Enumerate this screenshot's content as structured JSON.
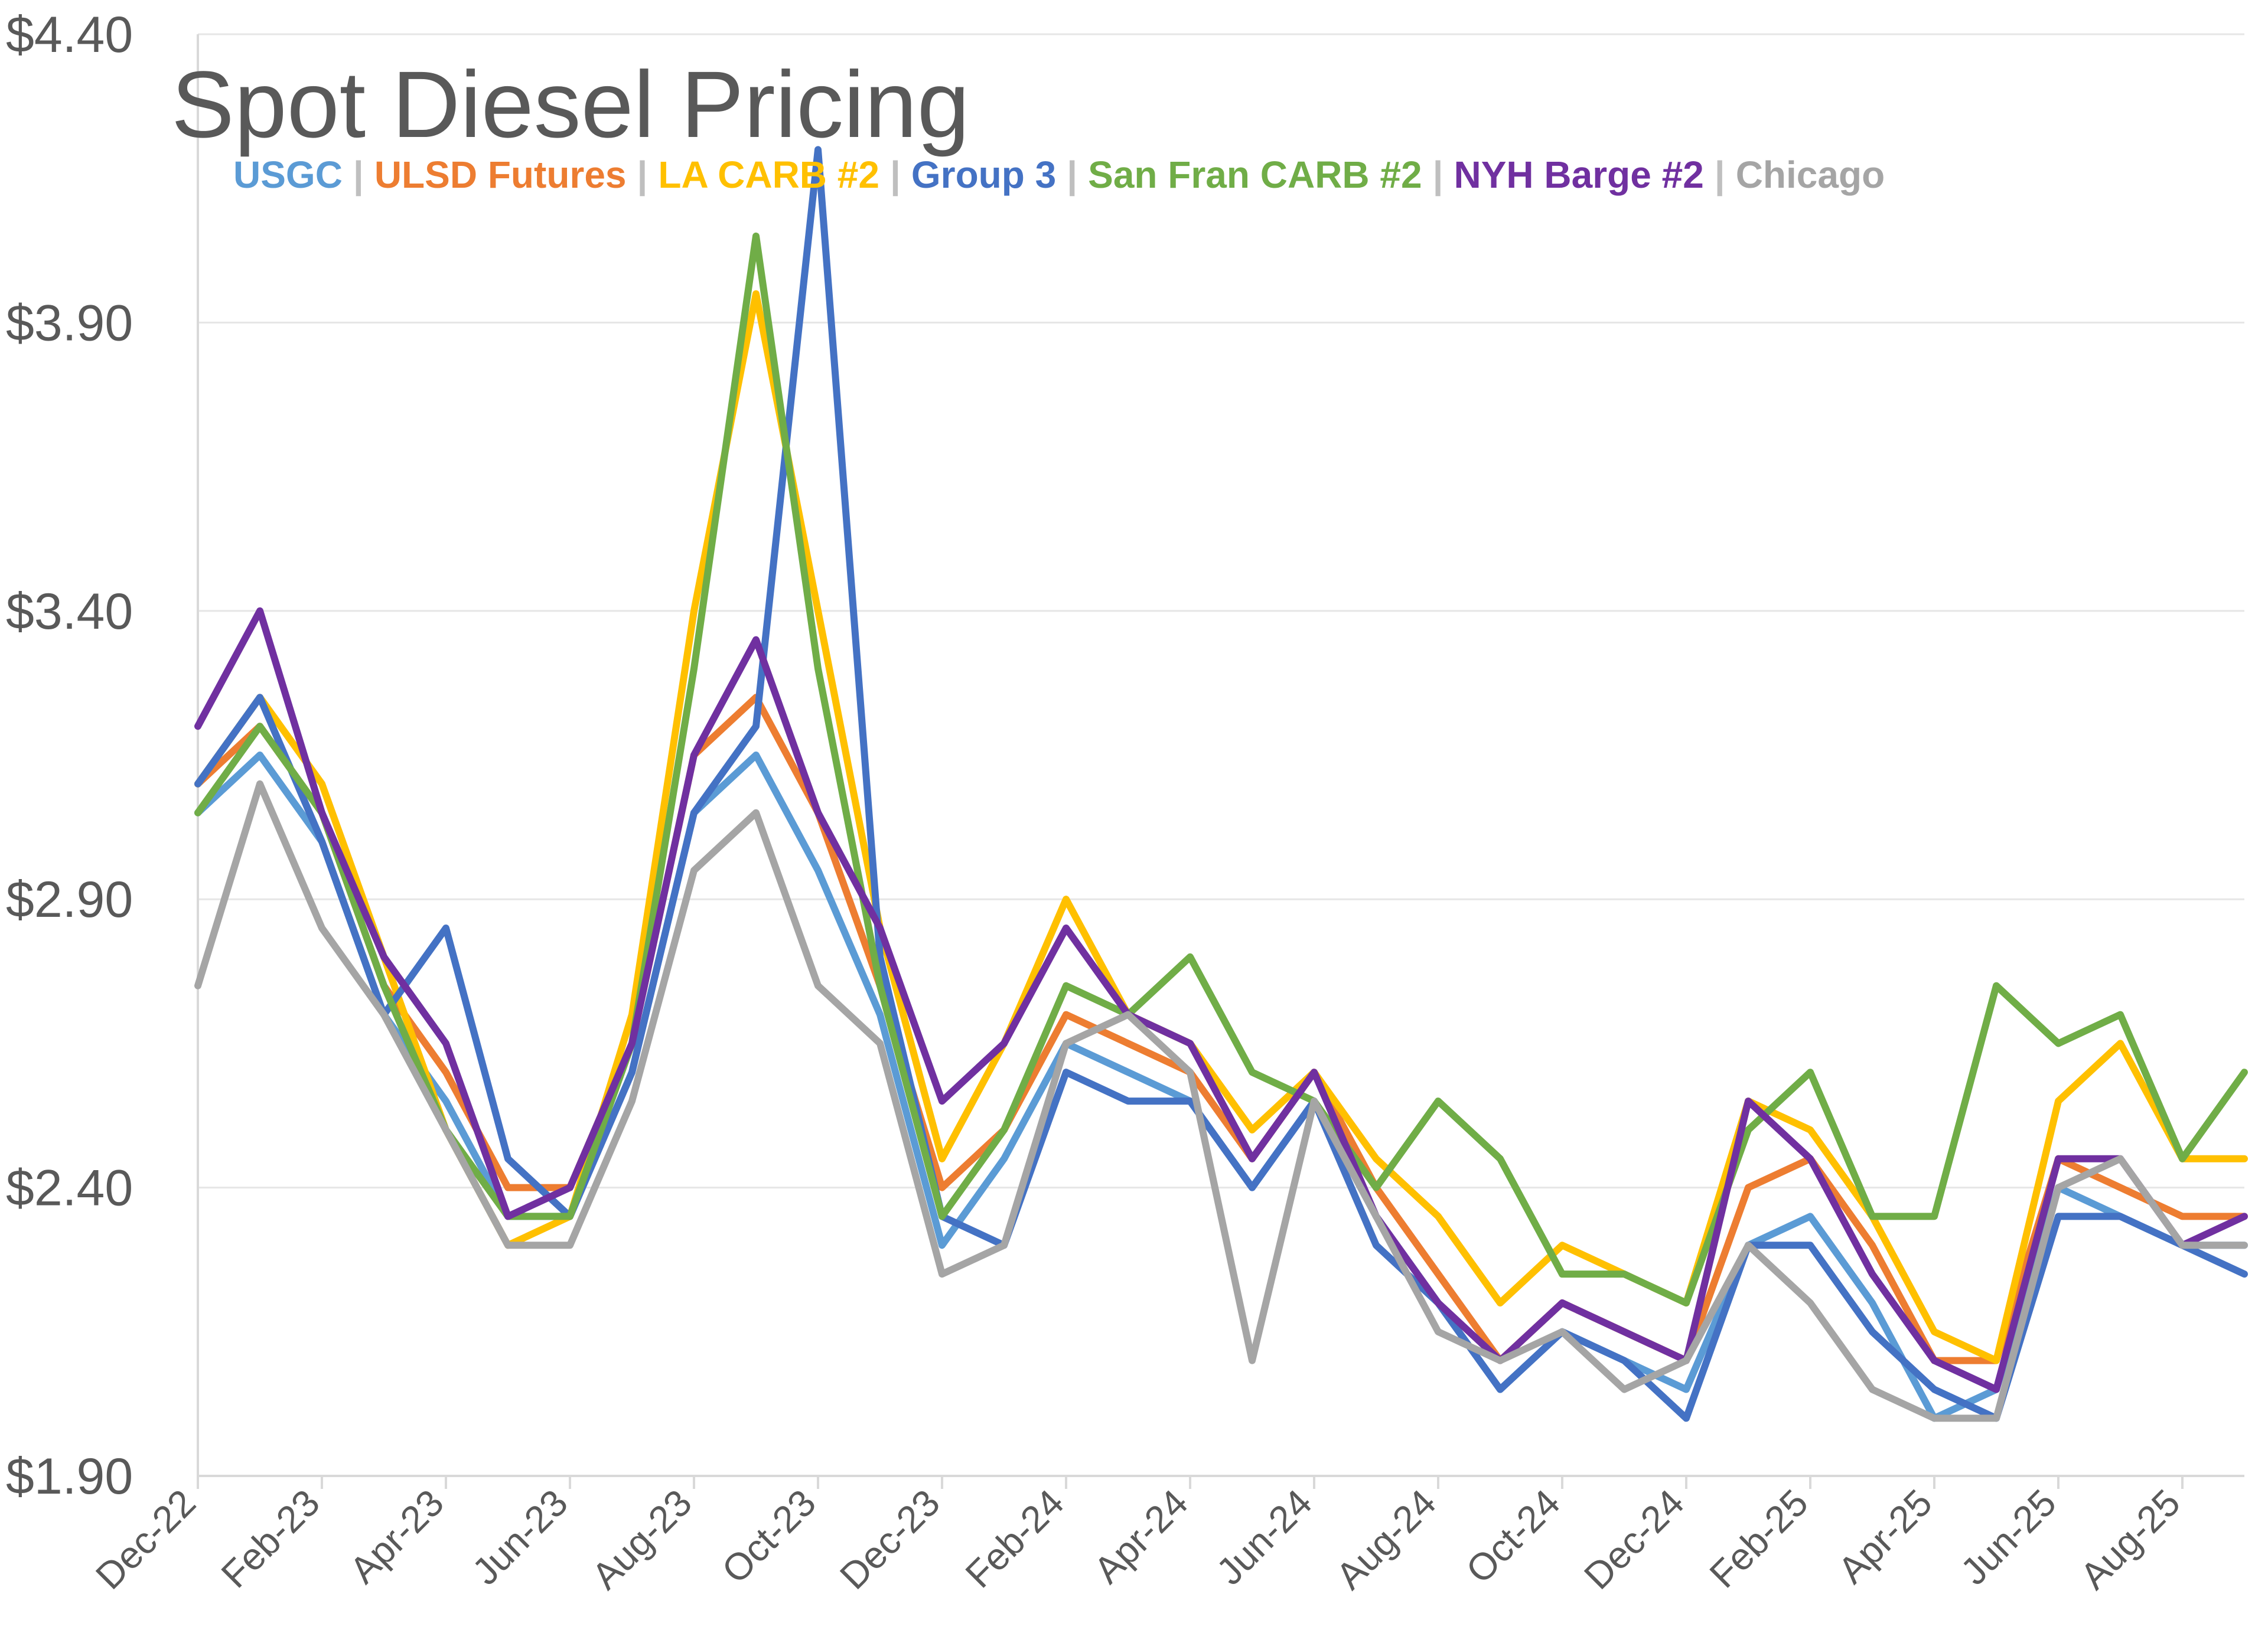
{
  "chart_data": {
    "type": "line",
    "title": "Spot Diesel Pricing",
    "xlabel": "",
    "ylabel": "",
    "ylim": [
      1.9,
      4.4
    ],
    "y_ticks": [
      "$1.90",
      "$2.40",
      "$2.90",
      "$3.40",
      "$3.90",
      "$4.40"
    ],
    "y_tick_values": [
      1.9,
      2.4,
      2.9,
      3.4,
      3.9,
      4.4
    ],
    "x_ticks": [
      "Dec-22",
      "Feb-23",
      "Apr-23",
      "Jun-23",
      "Aug-23",
      "Oct-23",
      "Dec-23",
      "Feb-24",
      "Apr-24",
      "Jun-24",
      "Aug-24",
      "Oct-24",
      "Dec-24",
      "Feb-25",
      "Apr-25",
      "Jun-25",
      "Aug-25"
    ],
    "x_tick_index": [
      0,
      2,
      4,
      6,
      8,
      10,
      12,
      14,
      16,
      18,
      20,
      22,
      24,
      26,
      28,
      30,
      32
    ],
    "x": [
      "Dec-22",
      "Jan-23",
      "Feb-23",
      "Mar-23",
      "Apr-23",
      "May-23",
      "Jun-23",
      "Jul-23",
      "Aug-23",
      "Sep-23",
      "Oct-23",
      "Nov-23",
      "Dec-23",
      "Jan-24",
      "Feb-24",
      "Mar-24",
      "Apr-24",
      "May-24",
      "Jun-24",
      "Jul-24",
      "Aug-24",
      "Sep-24",
      "Oct-24",
      "Nov-24",
      "Dec-24",
      "Jan-25",
      "Feb-25",
      "Mar-25",
      "Apr-25",
      "May-25",
      "Jun-25",
      "Jul-25",
      "Aug-25",
      "Sep-25"
    ],
    "legend_position": "top-left",
    "series": [
      {
        "name": "USGC",
        "color": "#5B9BD5",
        "values": [
          3.05,
          3.15,
          3.0,
          2.7,
          2.55,
          2.35,
          2.35,
          2.6,
          3.05,
          3.15,
          2.95,
          2.7,
          2.3,
          2.45,
          2.65,
          2.6,
          2.55,
          2.4,
          2.55,
          2.35,
          2.2,
          2.05,
          2.15,
          2.1,
          2.05,
          2.3,
          2.35,
          2.2,
          2.0,
          2.05,
          2.4,
          2.35,
          2.3,
          2.3
        ]
      },
      {
        "name": "ULSD Futures",
        "color": "#ED7D31",
        "values": [
          3.1,
          3.2,
          3.05,
          2.75,
          2.6,
          2.4,
          2.4,
          2.65,
          3.15,
          3.25,
          3.05,
          2.75,
          2.4,
          2.5,
          2.7,
          2.65,
          2.6,
          2.45,
          2.6,
          2.4,
          2.25,
          2.1,
          2.2,
          2.15,
          2.1,
          2.4,
          2.45,
          2.3,
          2.1,
          2.1,
          2.45,
          2.4,
          2.35,
          2.35
        ]
      },
      {
        "name": "LA CARB #2",
        "color": "#FFC000",
        "values": [
          3.1,
          3.25,
          3.1,
          2.8,
          2.5,
          2.3,
          2.35,
          2.7,
          3.4,
          3.95,
          3.4,
          2.85,
          2.45,
          2.65,
          2.9,
          2.7,
          2.65,
          2.5,
          2.6,
          2.45,
          2.35,
          2.2,
          2.3,
          2.25,
          2.2,
          2.55,
          2.5,
          2.35,
          2.15,
          2.1,
          2.55,
          2.65,
          2.45,
          2.45
        ]
      },
      {
        "name": "Group 3",
        "color": "#4472C4",
        "values": [
          3.1,
          3.25,
          3.0,
          2.7,
          2.85,
          2.45,
          2.35,
          2.6,
          3.05,
          3.2,
          4.2,
          2.8,
          2.35,
          2.3,
          2.6,
          2.55,
          2.55,
          2.4,
          2.55,
          2.3,
          2.2,
          2.05,
          2.15,
          2.1,
          2.0,
          2.3,
          2.3,
          2.15,
          2.05,
          2.0,
          2.35,
          2.35,
          2.3,
          2.25
        ]
      },
      {
        "name": "San Fran CARB #2",
        "color": "#70AD47",
        "values": [
          3.05,
          3.2,
          3.05,
          2.75,
          2.5,
          2.35,
          2.35,
          2.65,
          3.3,
          4.05,
          3.3,
          2.75,
          2.35,
          2.5,
          2.75,
          2.7,
          2.8,
          2.6,
          2.55,
          2.4,
          2.55,
          2.45,
          2.25,
          2.25,
          2.2,
          2.5,
          2.6,
          2.35,
          2.35,
          2.75,
          2.65,
          2.7,
          2.45,
          2.6
        ]
      },
      {
        "name": "NYH Barge #2",
        "color": "#7030A0",
        "values": [
          3.2,
          3.4,
          3.05,
          2.8,
          2.65,
          2.35,
          2.4,
          2.65,
          3.15,
          3.35,
          3.05,
          2.85,
          2.55,
          2.65,
          2.85,
          2.7,
          2.65,
          2.45,
          2.6,
          2.35,
          2.2,
          2.1,
          2.2,
          2.15,
          2.1,
          2.55,
          2.45,
          2.25,
          2.1,
          2.05,
          2.45,
          2.45,
          2.3,
          2.35
        ]
      },
      {
        "name": "Chicago",
        "color": "#A5A5A5",
        "values": [
          2.75,
          3.1,
          2.85,
          2.7,
          2.5,
          2.3,
          2.3,
          2.55,
          2.95,
          3.05,
          2.75,
          2.65,
          2.25,
          2.3,
          2.65,
          2.7,
          2.6,
          2.1,
          2.55,
          2.35,
          2.15,
          2.1,
          2.15,
          2.05,
          2.1,
          2.3,
          2.2,
          2.05,
          2.0,
          2.0,
          2.4,
          2.45,
          2.3,
          2.3
        ]
      }
    ]
  },
  "legend": {
    "separator": "|"
  }
}
